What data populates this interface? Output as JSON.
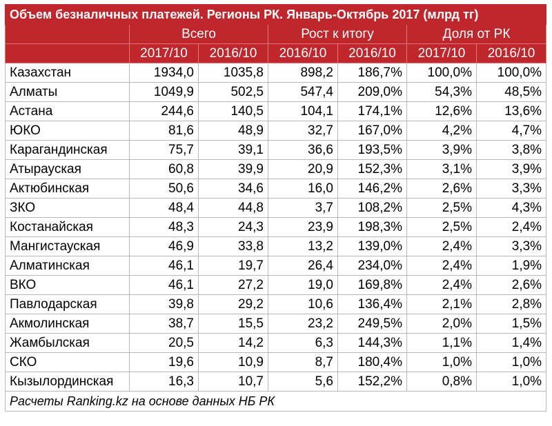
{
  "title": "Объем безналичных платежей. Регионы РК. Январь-Октябрь 2017 (млрд тг)",
  "colors": {
    "header_bg": "#c0272d",
    "header_text": "#ffffff",
    "grid": "#b7b7b7"
  },
  "groups": [
    "Всего",
    "Рост к итогу",
    "Доля от РК"
  ],
  "subheaders": [
    "2017/10",
    "2016/10",
    "2016/10",
    "2016/10",
    "2017/10",
    "2016/10"
  ],
  "rows": [
    [
      "Казахстан",
      "1934,0",
      "1035,8",
      "898,2",
      "186,7%",
      "100,0%",
      "100,0%"
    ],
    [
      "Алматы",
      "1049,9",
      "502,5",
      "547,4",
      "209,0%",
      "54,3%",
      "48,5%"
    ],
    [
      "Астана",
      "244,6",
      "140,5",
      "104,1",
      "174,1%",
      "12,6%",
      "13,6%"
    ],
    [
      "ЮКО",
      "81,6",
      "48,9",
      "32,7",
      "167,0%",
      "4,2%",
      "4,7%"
    ],
    [
      "Карагандинская",
      "75,7",
      "39,1",
      "36,6",
      "193,5%",
      "3,9%",
      "3,8%"
    ],
    [
      "Атырауская",
      "60,8",
      "39,9",
      "20,9",
      "152,3%",
      "3,1%",
      "3,9%"
    ],
    [
      "Актюбинская",
      "50,6",
      "34,6",
      "16,0",
      "146,2%",
      "2,6%",
      "3,3%"
    ],
    [
      "ЗКО",
      "48,4",
      "44,8",
      "3,7",
      "108,2%",
      "2,5%",
      "4,3%"
    ],
    [
      "Костанайская",
      "48,3",
      "24,3",
      "23,9",
      "198,3%",
      "2,5%",
      "2,4%"
    ],
    [
      "Мангистауская",
      "46,9",
      "33,8",
      "13,2",
      "139,0%",
      "2,4%",
      "3,3%"
    ],
    [
      "Алматинская",
      "46,1",
      "19,7",
      "26,4",
      "234,0%",
      "2,4%",
      "1,9%"
    ],
    [
      "ВКО",
      "46,1",
      "27,2",
      "19,0",
      "169,8%",
      "2,4%",
      "2,6%"
    ],
    [
      "Павлодарская",
      "39,8",
      "29,2",
      "10,6",
      "136,4%",
      "2,1%",
      "2,8%"
    ],
    [
      "Акмолинская",
      "38,7",
      "15,5",
      "23,2",
      "249,5%",
      "2,0%",
      "1,5%"
    ],
    [
      "Жамбылская",
      "20,5",
      "14,2",
      "6,3",
      "144,3%",
      "1,1%",
      "1,4%"
    ],
    [
      "СКО",
      "19,6",
      "10,9",
      "8,7",
      "180,4%",
      "1,0%",
      "1,0%"
    ],
    [
      "Кызылординская",
      "16,3",
      "10,7",
      "5,6",
      "152,2%",
      "0,8%",
      "1,0%"
    ]
  ],
  "footer": "Расчеты Ranking.kz на основе данных НБ РК"
}
